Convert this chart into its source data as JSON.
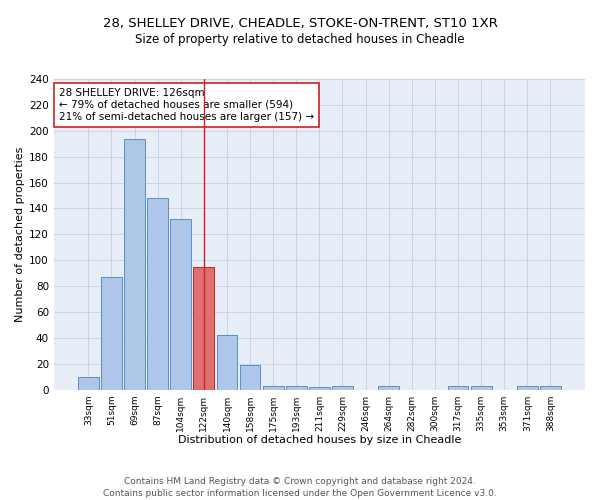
{
  "title1": "28, SHELLEY DRIVE, CHEADLE, STOKE-ON-TRENT, ST10 1XR",
  "title2": "Size of property relative to detached houses in Cheadle",
  "xlabel": "Distribution of detached houses by size in Cheadle",
  "ylabel": "Number of detached properties",
  "categories": [
    "33sqm",
    "51sqm",
    "69sqm",
    "87sqm",
    "104sqm",
    "122sqm",
    "140sqm",
    "158sqm",
    "175sqm",
    "193sqm",
    "211sqm",
    "229sqm",
    "246sqm",
    "264sqm",
    "282sqm",
    "300sqm",
    "317sqm",
    "335sqm",
    "353sqm",
    "371sqm",
    "388sqm"
  ],
  "values": [
    10,
    87,
    194,
    148,
    132,
    95,
    42,
    19,
    3,
    3,
    2,
    3,
    0,
    3,
    0,
    0,
    3,
    3,
    0,
    3,
    3
  ],
  "bar_color": "#aec6e8",
  "bar_edgecolor": "#5a8fc3",
  "highlight_index": 5,
  "highlight_bar_color": "#e07070",
  "highlight_bar_edgecolor": "#cc2222",
  "vline_color": "#cc2222",
  "annotation_text": "28 SHELLEY DRIVE: 126sqm\n← 79% of detached houses are smaller (594)\n21% of semi-detached houses are larger (157) →",
  "annotation_box_color": "#ffffff",
  "annotation_box_edgecolor": "#cc2222",
  "ylim": [
    0,
    240
  ],
  "yticks": [
    0,
    20,
    40,
    60,
    80,
    100,
    120,
    140,
    160,
    180,
    200,
    220,
    240
  ],
  "grid_color": "#c8d4e8",
  "bg_color": "#e8eef8",
  "footer_text": "Contains HM Land Registry data © Crown copyright and database right 2024.\nContains public sector information licensed under the Open Government Licence v3.0.",
  "title1_fontsize": 9.5,
  "title2_fontsize": 8.5,
  "xlabel_fontsize": 8,
  "ylabel_fontsize": 8,
  "annotation_fontsize": 7.5,
  "footer_fontsize": 6.5
}
